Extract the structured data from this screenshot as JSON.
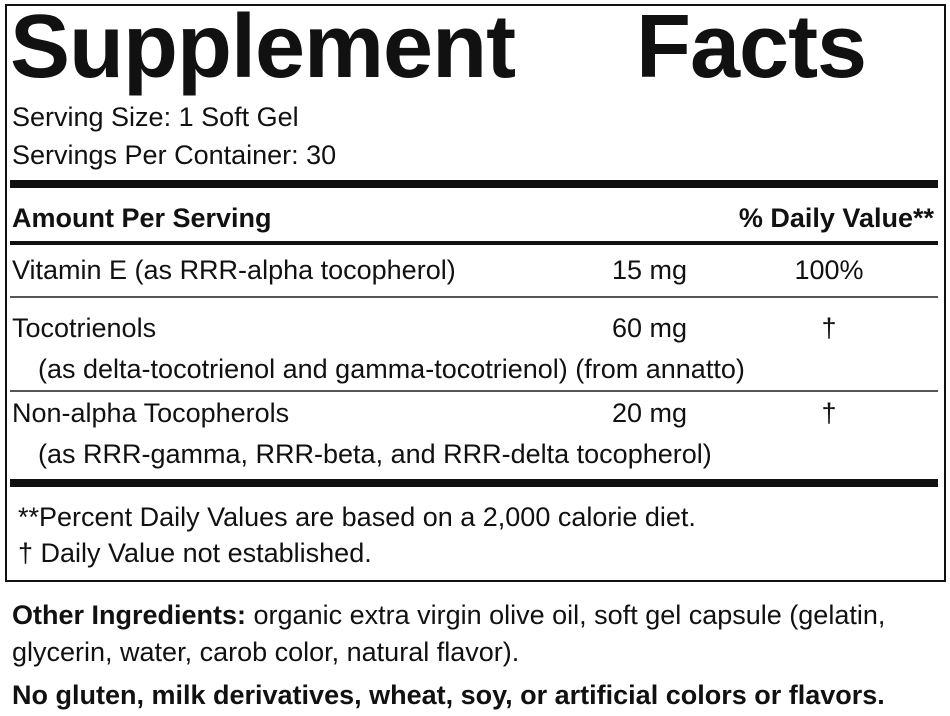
{
  "title_left": "Supplement",
  "title_right": "Facts",
  "serving_size": "Serving Size: 1 Soft Gel",
  "servings_per_container": "Servings Per Container: 30",
  "header": {
    "amount": "Amount Per Serving",
    "dv": "% Daily Value**"
  },
  "rows": [
    {
      "name": "Vitamin E (as RRR-alpha tocopherol)",
      "sub": "",
      "amount": "15 mg",
      "dv": "100%"
    },
    {
      "name": "Tocotrienols",
      "sub": "(as delta-tocotrienol and gamma-tocotrienol) (from annatto)",
      "amount": "60 mg",
      "dv": "†"
    },
    {
      "name": "Non-alpha Tocopherols",
      "sub": "(as RRR-gamma, RRR-beta, and RRR-delta tocopherol)",
      "amount": "20 mg",
      "dv": "†"
    }
  ],
  "footnotes": [
    "**Percent Daily Values are based on a 2,000 calorie diet.",
    "† Daily Value not established."
  ],
  "other_ingredients": {
    "label": "Other Ingredients:",
    "line1": " organic extra virgin olive oil, soft gel capsule (gelatin,",
    "line2": "glycerin, water, carob color, natural flavor)."
  },
  "allergen_statement": "No gluten, milk derivatives, wheat, soy, or artificial colors or flavors."
}
